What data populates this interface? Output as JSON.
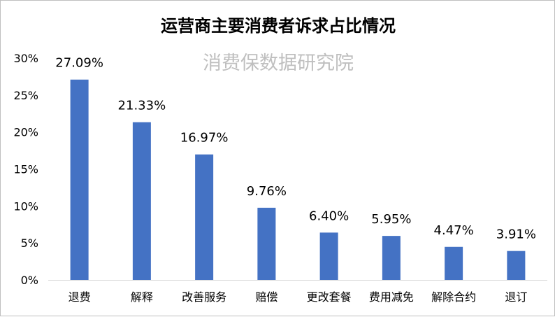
{
  "chart_data": {
    "type": "bar",
    "title": "运营商主要消费者诉求占比情况",
    "watermark": "消费保数据研究院",
    "categories": [
      "退费",
      "解释",
      "改善服务",
      "赔偿",
      "更改套餐",
      "费用减免",
      "解除合约",
      "退订"
    ],
    "values": [
      27.09,
      21.33,
      16.97,
      9.76,
      6.4,
      5.95,
      4.47,
      3.91
    ],
    "value_labels": [
      "27.09%",
      "21.33%",
      "16.97%",
      "9.76%",
      "6.40%",
      "5.95%",
      "4.47%",
      "3.91%"
    ],
    "y_ticks": [
      "0%",
      "5%",
      "10%",
      "15%",
      "20%",
      "25%",
      "30%"
    ],
    "y_tick_values": [
      0,
      5,
      10,
      15,
      20,
      25,
      30
    ],
    "ylim": [
      0,
      30
    ],
    "bar_color": "#4472C4",
    "grid": false,
    "legend": "none"
  }
}
